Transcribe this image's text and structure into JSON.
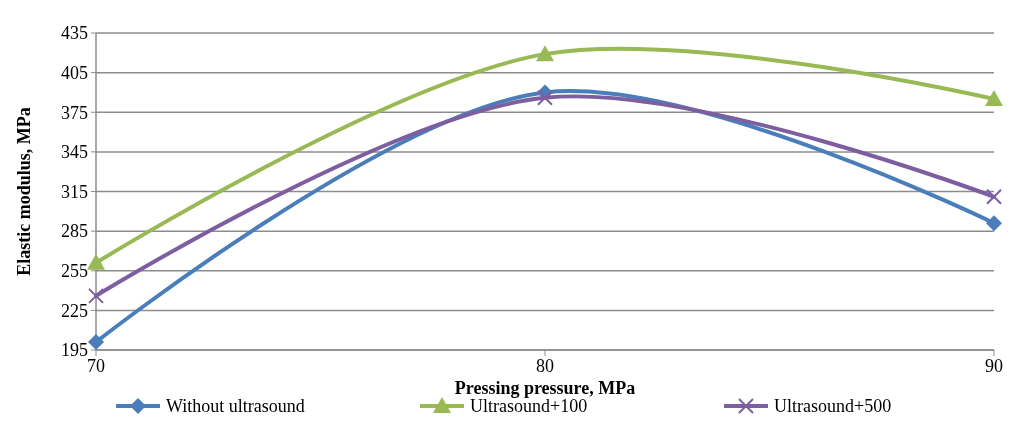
{
  "chart_data": {
    "type": "line",
    "xlabel": "Pressing pressure, MPa",
    "ylabel": "Elastic modulus, MPa",
    "x": [
      70,
      80,
      90
    ],
    "xlim": [
      70,
      90
    ],
    "xticks": [
      70,
      80,
      90
    ],
    "ylim": [
      195,
      435
    ],
    "yticks": [
      195,
      225,
      255,
      285,
      315,
      345,
      375,
      405,
      435
    ],
    "grid": "y",
    "legend": "bottom",
    "series": [
      {
        "name": "Without ultrasound",
        "color": "#4a7ebb",
        "marker": "diamond",
        "values": [
          201,
          390,
          291
        ]
      },
      {
        "name": "Ultrasound+100",
        "color": "#98b954",
        "marker": "triangle",
        "values": [
          261,
          419,
          385
        ]
      },
      {
        "name": "Ultrasound+500",
        "color": "#7d5fa0",
        "marker": "cross",
        "values": [
          236,
          386,
          311
        ]
      }
    ]
  }
}
